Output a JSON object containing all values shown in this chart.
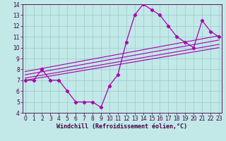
{
  "xlabel": "Windchill (Refroidissement éolien,°C)",
  "bg_color": "#c2e8e8",
  "line_color": "#aa00aa",
  "grid_color": "#99cccc",
  "xmin": 0,
  "xmax": 23,
  "ymin": 4,
  "ymax": 14,
  "hours": [
    0,
    1,
    2,
    3,
    4,
    5,
    6,
    7,
    8,
    9,
    10,
    11,
    12,
    13,
    14,
    15,
    16,
    17,
    18,
    19,
    20,
    21,
    22,
    23
  ],
  "windchill": [
    7,
    7,
    8,
    7,
    7,
    6,
    5,
    5,
    5,
    4.5,
    6.5,
    7.5,
    10.5,
    13,
    14,
    13.5,
    13,
    12,
    11,
    10.5,
    10,
    12.5,
    11.5,
    11
  ],
  "trend_starts": [
    7.0,
    7.2,
    7.5,
    7.8
  ],
  "trend_ends": [
    10.0,
    10.3,
    10.7,
    11.1
  ],
  "spine_color": "#440044",
  "tick_color": "#440044",
  "xlabel_fontsize": 6.0,
  "tick_fontsize": 5.5,
  "linewidth": 0.9,
  "markersize": 2.2
}
